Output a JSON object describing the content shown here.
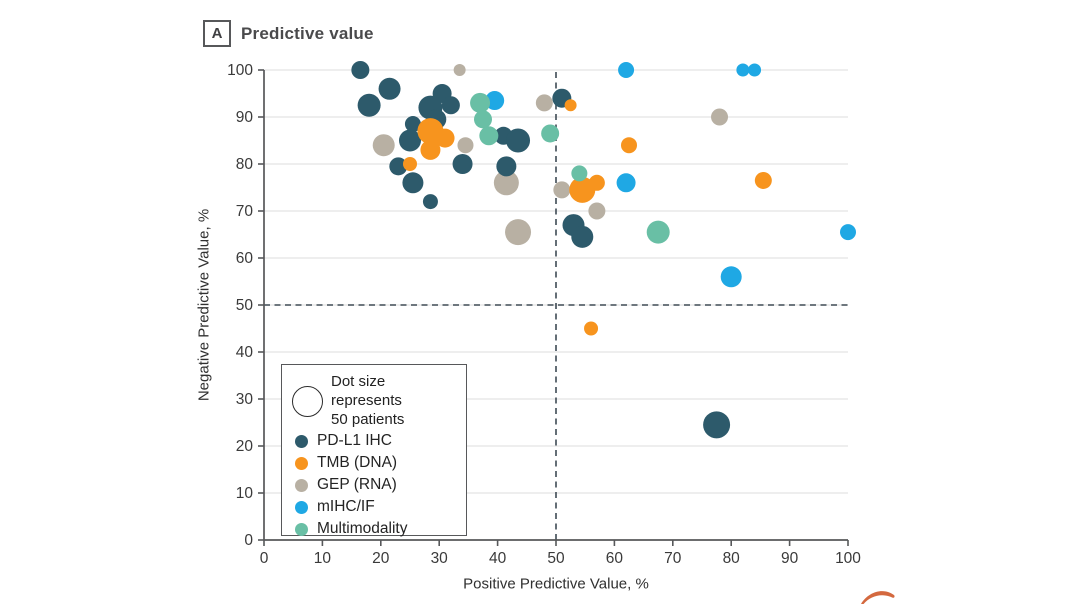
{
  "figure": {
    "panel_label": "A",
    "title": "Predictive value"
  },
  "chart_data": {
    "type": "scatter",
    "title": "Predictive value",
    "xlabel": "Positive Predictive Value, %",
    "ylabel": "Negative Predictive Value, %",
    "xlim": [
      0,
      100
    ],
    "ylim": [
      0,
      100
    ],
    "xticks": [
      0,
      10,
      20,
      30,
      40,
      50,
      60,
      70,
      80,
      90,
      100
    ],
    "yticks": [
      0,
      10,
      20,
      30,
      40,
      50,
      60,
      70,
      80,
      90,
      100
    ],
    "grid": "horizontal-only",
    "legend_position": "lower-left",
    "reference_lines": {
      "x": 50,
      "y": 50,
      "style": "dashed",
      "color": "#3e4a54"
    },
    "size_legend": {
      "line1": "Dot size represents",
      "line2": "50 patients",
      "patients": 50,
      "radius_px": 15
    },
    "axis_color": "#57585a",
    "grid_color": "#dedede",
    "tick_label_color": "#3a3a3a",
    "series": [
      {
        "name": "PD-L1 IHC",
        "color": "#2d5a6b",
        "points": [
          [
            16.5,
            100,
            9
          ],
          [
            21.5,
            96,
            11
          ],
          [
            18,
            92.5,
            11.5
          ],
          [
            30.5,
            95,
            9.5
          ],
          [
            28.5,
            92,
            12
          ],
          [
            32,
            92.5,
            9
          ],
          [
            29.5,
            89.5,
            10
          ],
          [
            25.5,
            88.5,
            8
          ],
          [
            25,
            85,
            11
          ],
          [
            23,
            79.5,
            9
          ],
          [
            25.5,
            76,
            10.5
          ],
          [
            28.5,
            72,
            7.5
          ],
          [
            34,
            80,
            10
          ],
          [
            41,
            86,
            9
          ],
          [
            43.5,
            85,
            12
          ],
          [
            41.5,
            79.5,
            10
          ],
          [
            51,
            94,
            9.5
          ],
          [
            53,
            67,
            11
          ],
          [
            54.5,
            64.5,
            11
          ],
          [
            77.5,
            24.5,
            13.5
          ]
        ]
      },
      {
        "name": "TMB (DNA)",
        "color": "#f7941e",
        "points": [
          [
            28.5,
            87,
            13
          ],
          [
            31,
            85.5,
            9.5
          ],
          [
            28.5,
            83,
            10
          ],
          [
            25,
            80,
            7
          ],
          [
            52.5,
            92.5,
            6
          ],
          [
            62.5,
            84,
            8
          ],
          [
            54.5,
            74.5,
            13
          ],
          [
            57,
            76,
            8
          ],
          [
            56,
            45,
            7
          ],
          [
            85.5,
            76.5,
            8.5
          ]
        ]
      },
      {
        "name": "GEP (RNA)",
        "color": "#b8b0a3",
        "points": [
          [
            33.5,
            100,
            6
          ],
          [
            20.5,
            84,
            11
          ],
          [
            34.5,
            84,
            8
          ],
          [
            41.5,
            76,
            12.5
          ],
          [
            43.5,
            65.5,
            13
          ],
          [
            48,
            93,
            8.5
          ],
          [
            51,
            74.5,
            8.5
          ],
          [
            57,
            70,
            8.5
          ],
          [
            78,
            90,
            8.5
          ]
        ]
      },
      {
        "name": "mIHC/IF",
        "color": "#1fa8e4",
        "points": [
          [
            39.5,
            93.5,
            9.5
          ],
          [
            62,
            100,
            8
          ],
          [
            82,
            100,
            6.5
          ],
          [
            84,
            100,
            6.5
          ],
          [
            62,
            76,
            9.5
          ],
          [
            80,
            56,
            10.5
          ],
          [
            100,
            65.5,
            8
          ]
        ]
      },
      {
        "name": "Multimodality",
        "color": "#69bfa5",
        "points": [
          [
            37,
            93,
            10
          ],
          [
            37.5,
            89.5,
            9
          ],
          [
            38.5,
            86,
            9.5
          ],
          [
            49,
            86.5,
            9
          ],
          [
            54,
            78,
            8
          ],
          [
            67.5,
            65.5,
            11.5
          ]
        ]
      }
    ]
  },
  "decoration": {
    "swoosh_color": "#d4693f"
  }
}
